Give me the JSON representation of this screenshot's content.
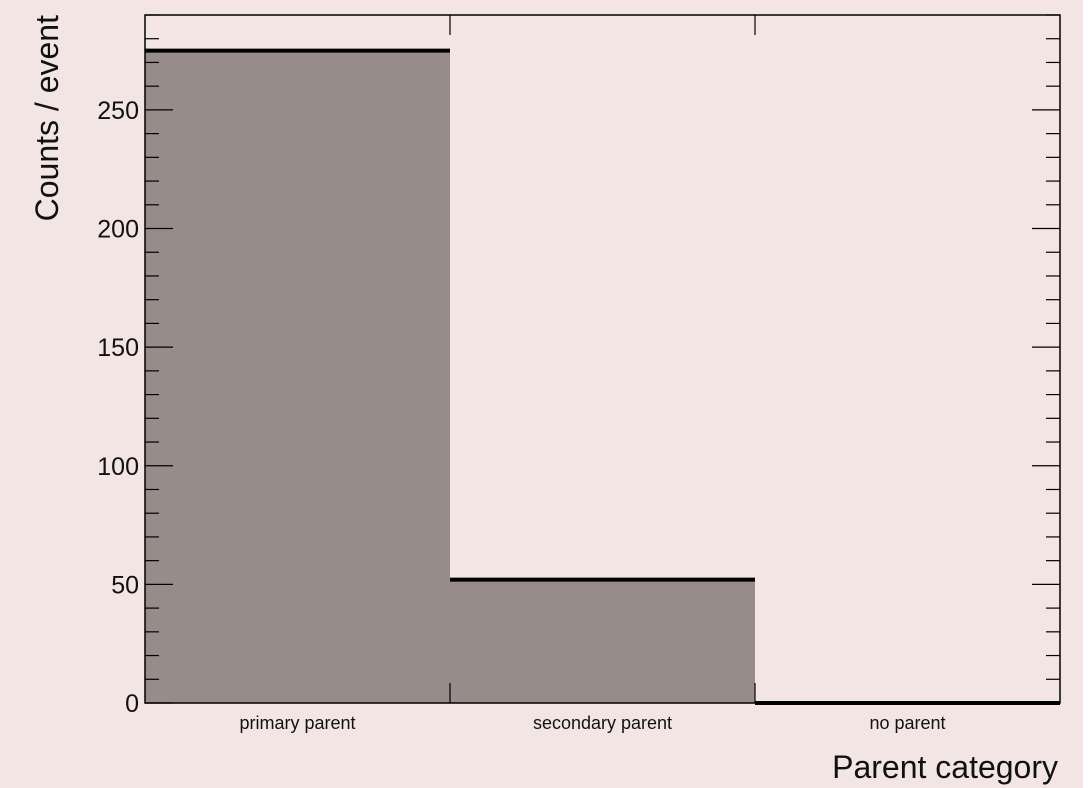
{
  "chart_data": {
    "type": "bar",
    "title": "",
    "xlabel": "Parent category",
    "ylabel": "Counts / event",
    "categories": [
      "primary parent",
      "secondary parent",
      "no parent"
    ],
    "series": [
      {
        "values": [
          275,
          52,
          0
        ]
      }
    ],
    "ylim": [
      0,
      290
    ],
    "y_ticks": [
      0,
      50,
      100,
      150,
      200,
      250
    ],
    "grid": false,
    "legend": "none"
  },
  "colors": {
    "background": "#f3e5e4",
    "bar_fill": "#988c8b",
    "bar_edge": "#000000",
    "axis": "#000000"
  }
}
